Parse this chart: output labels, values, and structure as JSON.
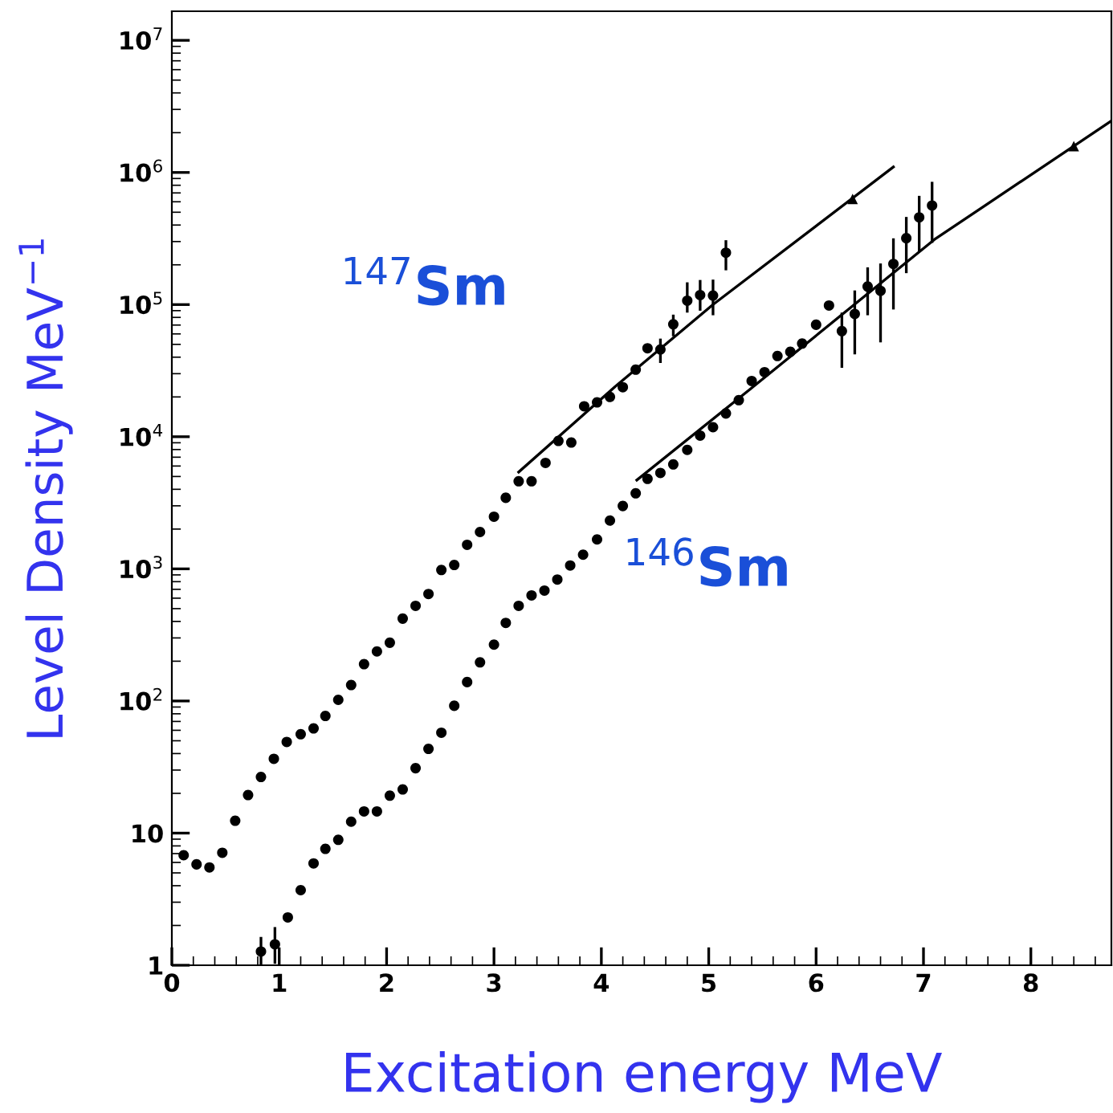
{
  "chart_data": {
    "type": "scatter",
    "xlabel": "Excitation energy MeV",
    "ylabel": "Level Density MeV$^{−1}$",
    "log": "y",
    "xlim": [
      0,
      8.75
    ],
    "ylim": [
      1,
      16600000
    ],
    "xticks": [
      0,
      1,
      2,
      3,
      4,
      5,
      6,
      7,
      8
    ],
    "yticks": [
      1,
      10,
      {
        "value": 100,
        "label": "10$^{2}$"
      },
      {
        "value": 1000,
        "label": "10$^{3}$"
      },
      {
        "value": 10000,
        "label": "10$^{4}$"
      },
      {
        "value": 100000,
        "label": "10$^{5}$"
      },
      {
        "value": 1000000,
        "label": "10$^{6}$"
      },
      {
        "value": 10000000,
        "label": "10$^{7}$"
      }
    ],
    "grid": false,
    "annotations": [
      "$^{147}$Sm",
      "$^{146}$Sm"
    ],
    "series": [
      {
        "marker": "circle",
        "color": "#000000",
        "x": [
          0.11,
          0.23,
          0.35,
          0.47,
          0.59,
          0.71,
          0.83,
          0.95,
          1.07,
          1.2,
          1.32,
          1.43,
          1.55,
          1.67,
          1.79,
          1.91,
          2.03,
          2.15,
          2.27,
          2.39,
          2.51,
          2.63,
          2.75,
          2.87,
          3.0,
          3.11,
          3.23,
          3.35,
          3.48,
          3.6,
          3.72,
          3.84,
          3.96,
          4.08,
          4.2,
          4.32,
          4.43,
          4.55,
          4.67,
          4.8,
          4.92,
          5.04,
          5.16
        ],
        "values": [
          6.8,
          5.8,
          5.5,
          7.1,
          12.4,
          19.4,
          26.6,
          36.5,
          49,
          56,
          62,
          77,
          102,
          132,
          190,
          237,
          276,
          420,
          525,
          645,
          980,
          1070,
          1520,
          1900,
          2480,
          3450,
          4600,
          4600,
          6340,
          9300,
          9040,
          17000,
          18200,
          20000,
          23700,
          32200,
          46700,
          45700,
          71000,
          107000,
          118000,
          117000,
          247000
        ],
        "errors": [
          null,
          null,
          null,
          null,
          null,
          null,
          null,
          null,
          null,
          null,
          null,
          null,
          null,
          null,
          null,
          null,
          null,
          null,
          null,
          null,
          null,
          null,
          null,
          null,
          null,
          null,
          null,
          null,
          null,
          null,
          null,
          null,
          null,
          null,
          null,
          null,
          null,
          [
            37000,
            54000
          ],
          [
            59000,
            82000
          ],
          [
            89000,
            144000
          ],
          [
            92000,
            150000
          ],
          [
            85000,
            151000
          ],
          [
            186000,
            300000
          ]
        ]
      },
      {
        "marker": "circle",
        "color": "#000000",
        "x": [
          0.83,
          0.96,
          1.08,
          1.2,
          1.32,
          1.43,
          1.55,
          1.67,
          1.79,
          1.91,
          2.03,
          2.15,
          2.27,
          2.39,
          2.51,
          2.63,
          2.75,
          2.87,
          3.0,
          3.11,
          3.23,
          3.35,
          3.47,
          3.59,
          3.71,
          3.83,
          3.96,
          4.08,
          4.2,
          4.32,
          4.43,
          4.55,
          4.67,
          4.8,
          4.92,
          5.04,
          5.16,
          5.28,
          5.4,
          5.52,
          5.64,
          5.76,
          5.87,
          6.0,
          6.12,
          6.24,
          6.36,
          6.48,
          6.6,
          6.72,
          6.84,
          6.96,
          7.08
        ],
        "values": [
          1.27,
          1.44,
          2.3,
          3.7,
          5.9,
          7.6,
          8.9,
          12.2,
          14.6,
          14.6,
          19.2,
          21.4,
          31,
          43.4,
          57.5,
          92,
          139,
          196,
          267,
          390,
          525,
          630,
          685,
          830,
          1060,
          1280,
          1670,
          2320,
          2990,
          3730,
          4800,
          5320,
          6170,
          7950,
          10200,
          11800,
          15000,
          18900,
          26400,
          30800,
          40800,
          43900,
          50700,
          70400,
          98400,
          63000,
          85000,
          137000,
          127000,
          203000,
          318000,
          457000,
          562000
        ],
        "errors": [
          [
            1.0,
            1.6
          ],
          [
            1.05,
            1.9
          ],
          null,
          null,
          null,
          null,
          null,
          null,
          null,
          null,
          null,
          null,
          null,
          null,
          null,
          null,
          null,
          null,
          null,
          null,
          null,
          null,
          null,
          null,
          null,
          null,
          null,
          null,
          null,
          null,
          null,
          null,
          null,
          null,
          null,
          null,
          null,
          null,
          null,
          null,
          null,
          null,
          null,
          null,
          null,
          [
            34000,
            85000
          ],
          [
            43000,
            125000
          ],
          [
            85000,
            187000
          ],
          [
            53000,
            200000
          ],
          [
            94000,
            310000
          ],
          [
            177000,
            450000
          ],
          [
            257000,
            650000
          ],
          [
            300000,
            830000
          ]
        ]
      },
      {
        "type": "line",
        "color": "#000000",
        "x": [
          3.23,
          4.13,
          5.04,
          6.72
        ],
        "values": [
          5400,
          24000,
          100000,
          1100000
        ]
      },
      {
        "type": "line",
        "color": "#000000",
        "x": [
          4.33,
          5.38,
          7.1,
          8.75
        ],
        "values": [
          4700,
          22700,
          310000,
          2460000
        ]
      },
      {
        "type": "scatter",
        "marker": "triangle",
        "color": "#000000",
        "x": [
          6.34
        ],
        "values": [
          630000
        ]
      },
      {
        "type": "scatter",
        "marker": "triangle",
        "color": "#000000",
        "x": [
          8.4
        ],
        "values": [
          1580000
        ]
      }
    ]
  }
}
